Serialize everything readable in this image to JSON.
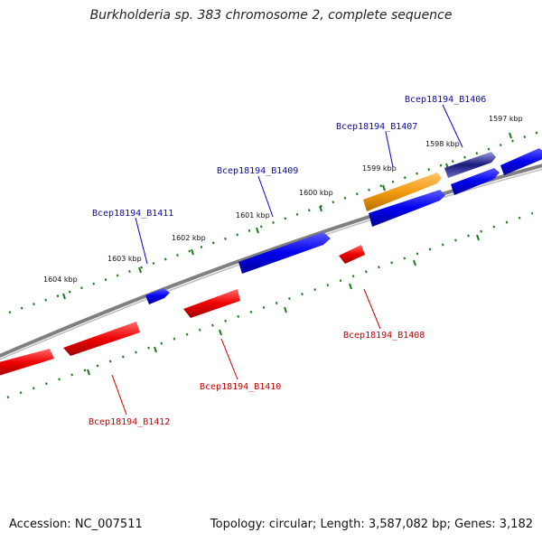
{
  "title": "Burkholderia sp. 383 chromosome 2, complete sequence",
  "footer": {
    "accession": "Accession: NC_007511",
    "summary": "Topology: circular; Length: 3,587,082 bp; Genes: 3,182"
  },
  "colors": {
    "forward_gene": "#0000ee",
    "reverse_gene": "#ee0000",
    "highlighted_gene": "#f39c12",
    "selected_gene": "#1a1a7a",
    "backbone": "#808080",
    "ticks": "#1e7a1e"
  },
  "kbp_ticks": [
    "1597 kbp",
    "1598 kbp",
    "1599 kbp",
    "1600 kbp",
    "1601 kbp",
    "1602 kbp",
    "1603 kbp",
    "1604 kbp"
  ],
  "gene_labels_forward": [
    "Bcep18194_B1406",
    "Bcep18194_B1407",
    "Bcep18194_B1409",
    "Bcep18194_B1411"
  ],
  "gene_labels_reverse": [
    "Bcep18194_B1408",
    "Bcep18194_B1410",
    "Bcep18194_B1412"
  ]
}
